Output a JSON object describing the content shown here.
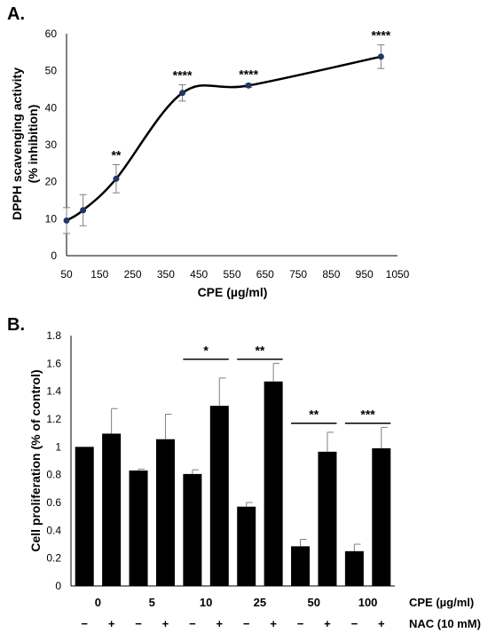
{
  "chart_data": [
    {
      "panel_label": "A.",
      "type": "line",
      "xlabel": "CPE (µg/ml)",
      "ylabel_line1": "DPPH scavenging activity",
      "ylabel_line2": "(% inhibition)",
      "xlim": [
        50,
        1050
      ],
      "ylim": [
        0,
        60
      ],
      "xticks": [
        "50",
        "150",
        "250",
        "350",
        "450",
        "550",
        "650",
        "750",
        "850",
        "950",
        "1050"
      ],
      "yticks": [
        "0",
        "10",
        "20",
        "30",
        "40",
        "50",
        "60"
      ],
      "grid": false,
      "points": [
        {
          "x": 50,
          "y": 9.5,
          "err": 3.5,
          "sig": ""
        },
        {
          "x": 100,
          "y": 12.3,
          "err": 4.2,
          "sig": ""
        },
        {
          "x": 200,
          "y": 20.8,
          "err": 3.8,
          "sig": "**"
        },
        {
          "x": 400,
          "y": 44.0,
          "err": 2.2,
          "sig": "****"
        },
        {
          "x": 600,
          "y": 46.0,
          "err": 0.5,
          "sig": "****"
        },
        {
          "x": 1000,
          "y": 53.8,
          "err": 3.2,
          "sig": "****"
        }
      ],
      "colors": {
        "line": "#000000",
        "marker": "#1f3864"
      }
    },
    {
      "panel_label": "B.",
      "type": "bar",
      "ylabel": "Cell proliferation (% of control)",
      "ylim": [
        0,
        1.8
      ],
      "yticks": [
        "0",
        "0.2",
        "0.4",
        "0.6",
        "0.8",
        "1",
        "1.2",
        "1.4",
        "1.6",
        "1.8"
      ],
      "grid": false,
      "groups": [
        "0",
        "5",
        "10",
        "25",
        "50",
        "100"
      ],
      "cpe_label": "CPE (µg/ml)",
      "nac_label": "NAC (10 mM)",
      "nac_signs": [
        "−",
        "+",
        "−",
        "+",
        "−",
        "+",
        "−",
        "+",
        "−",
        "+",
        "−",
        "+"
      ],
      "values": [
        1.0,
        1.095,
        0.83,
        1.055,
        0.805,
        1.295,
        0.57,
        1.47,
        0.285,
        0.965,
        0.25,
        0.99
      ],
      "errors": [
        0.0,
        0.18,
        0.01,
        0.18,
        0.03,
        0.2,
        0.03,
        0.13,
        0.05,
        0.14,
        0.05,
        0.15
      ],
      "significance": [
        {
          "group": 2,
          "label": "*",
          "y": 1.63
        },
        {
          "group": 3,
          "label": "**",
          "y": 1.63
        },
        {
          "group": 4,
          "label": "**",
          "y": 1.17
        },
        {
          "group": 5,
          "label": "***",
          "y": 1.17
        }
      ],
      "colors": {
        "bar": "#000000"
      }
    }
  ]
}
